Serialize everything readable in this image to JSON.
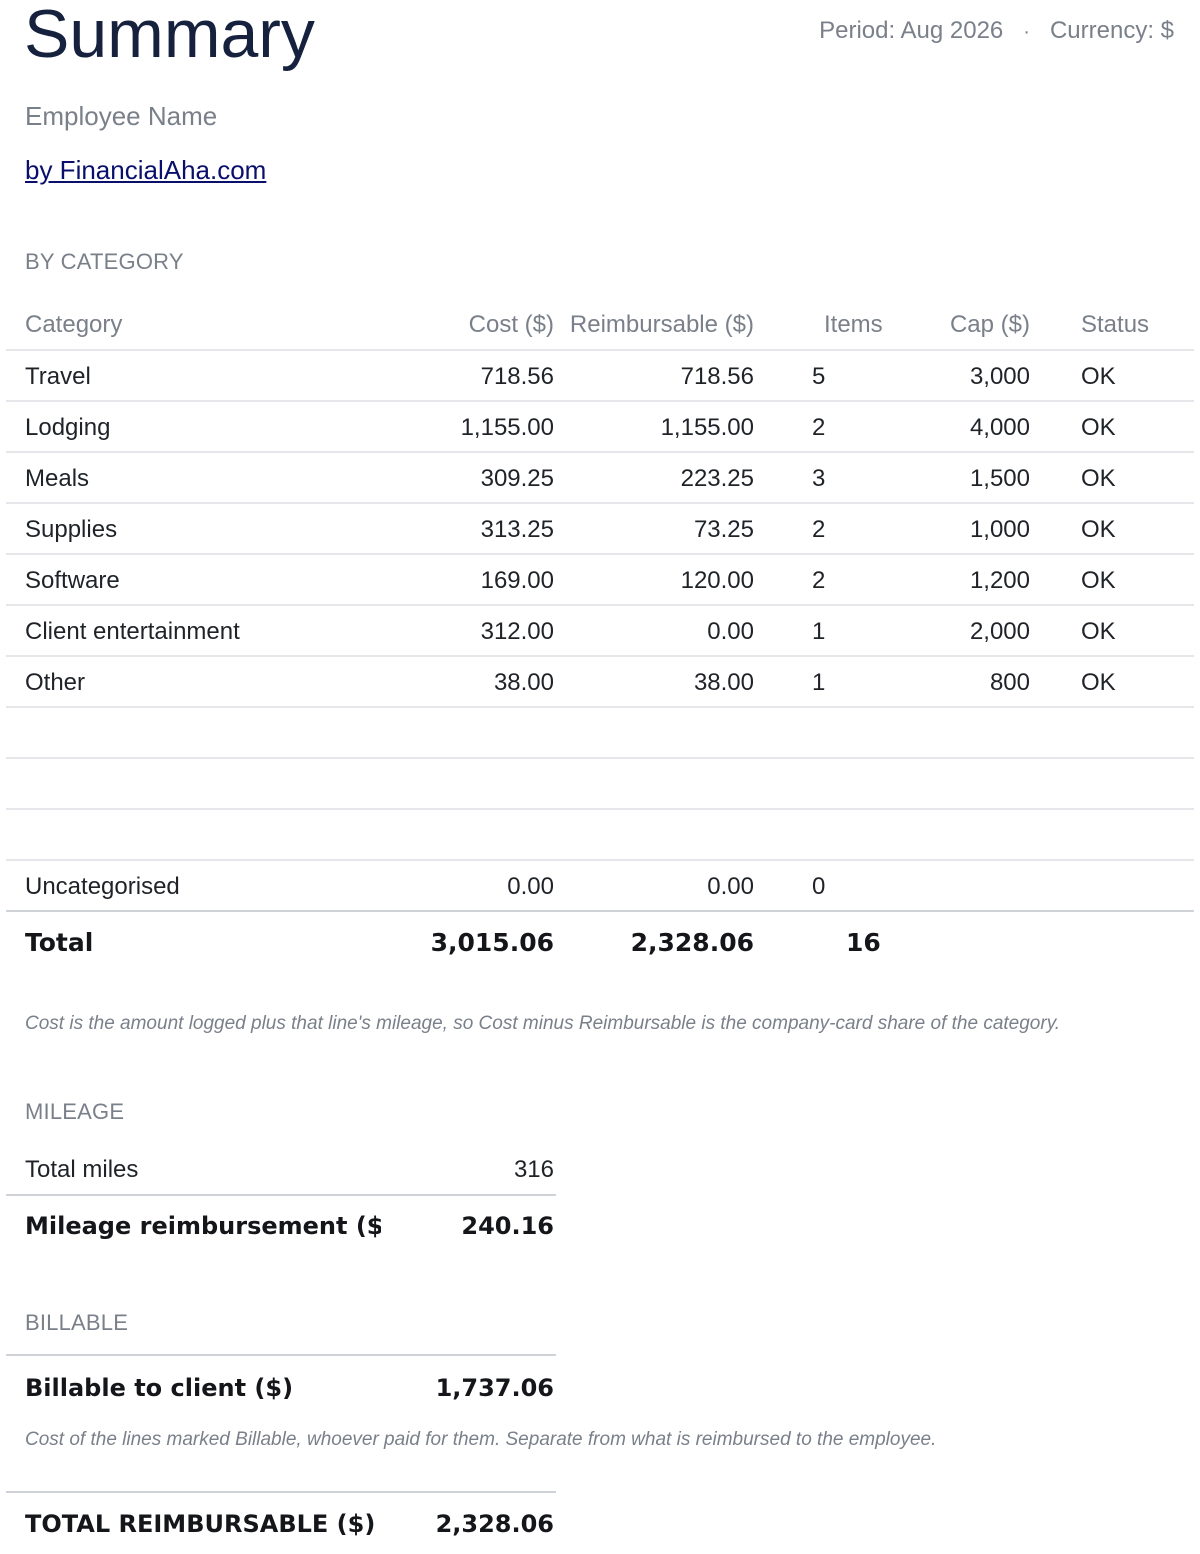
{
  "header": {
    "title": "Summary",
    "period": "Period: Aug 2026",
    "separator": "·",
    "currency": "Currency: $",
    "employee": "Employee Name",
    "credit": "by FinancialAha.com"
  },
  "by_category": {
    "section_label": "BY CATEGORY",
    "columns": [
      "Category",
      "Cost ($)",
      "Reimbursable ($)",
      "Items",
      "Cap ($)",
      "Status"
    ],
    "rows": [
      {
        "category": "Travel",
        "cost": "718.56",
        "reimbursable": "718.56",
        "items": "5",
        "cap": "3,000",
        "status": "OK"
      },
      {
        "category": "Lodging",
        "cost": "1,155.00",
        "reimbursable": "1,155.00",
        "items": "2",
        "cap": "4,000",
        "status": "OK"
      },
      {
        "category": "Meals",
        "cost": "309.25",
        "reimbursable": "223.25",
        "items": "3",
        "cap": "1,500",
        "status": "OK"
      },
      {
        "category": "Supplies",
        "cost": "313.25",
        "reimbursable": "73.25",
        "items": "2",
        "cap": "1,000",
        "status": "OK"
      },
      {
        "category": "Software",
        "cost": "169.00",
        "reimbursable": "120.00",
        "items": "2",
        "cap": "1,200",
        "status": "OK"
      },
      {
        "category": "Client entertainment",
        "cost": "312.00",
        "reimbursable": "0.00",
        "items": "1",
        "cap": "2,000",
        "status": "OK"
      },
      {
        "category": "Other",
        "cost": "38.00",
        "reimbursable": "38.00",
        "items": "1",
        "cap": "800",
        "status": "OK"
      }
    ],
    "uncategorised": {
      "category": "Uncategorised",
      "cost": "0.00",
      "reimbursable": "0.00",
      "items": "0"
    },
    "total": {
      "label": "Total",
      "cost": "3,015.06",
      "reimbursable": "2,328.06",
      "items": "16"
    },
    "note": "Cost is the amount logged plus that line's mileage, so Cost minus Reimbursable is the company-card share of the category."
  },
  "mileage": {
    "section_label": "MILEAGE",
    "total_miles_label": "Total miles",
    "total_miles": "316",
    "reimbursement_label": "Mileage reimbursement ($)",
    "reimbursement": "240.16"
  },
  "billable": {
    "section_label": "BILLABLE",
    "label": "Billable to client ($)",
    "value": "1,737.06",
    "note": "Cost of the lines marked Billable, whoever paid for them. Separate from what is reimbursed to the employee."
  },
  "grand_total": {
    "label": "TOTAL REIMBURSABLE ($)",
    "value": "2,328.06"
  }
}
